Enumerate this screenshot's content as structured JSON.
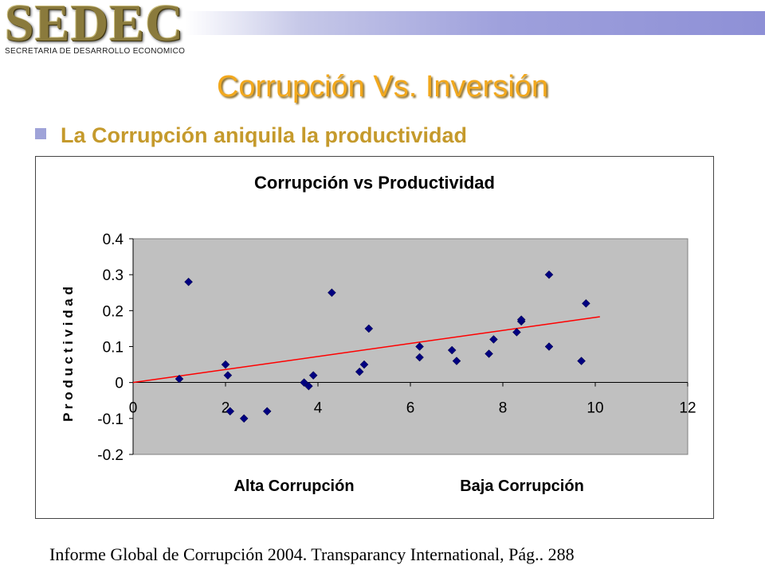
{
  "header": {
    "logo_text": "SEDEC",
    "logo_subtitle": "SECRETARIA DE DESARROLLO ECONOMICO",
    "bar_color": "#8e90d6"
  },
  "slide": {
    "title": "Corrupción Vs. Inversión",
    "bullet": "La Corrupción aniquila la productividad",
    "source": "Informe Global de Corrupción 2004. Transparancy International, Pág.. 288"
  },
  "chart_data": {
    "type": "scatter",
    "title": "Corrupción vs Productividad",
    "xlabel_left": "Alta Corrupción",
    "xlabel_right": "Baja Corrupción",
    "ylabel": "P r o d u c t i v i d a d",
    "xlim": [
      0,
      12
    ],
    "ylim": [
      -0.2,
      0.4
    ],
    "x_ticks": [
      "0",
      "2",
      "4",
      "6",
      "8",
      "10",
      "12"
    ],
    "y_ticks": [
      "0.4",
      "0.3",
      "0.2",
      "0.1",
      "0",
      "-0.1",
      "-0.2"
    ],
    "grid": false,
    "plot_background": "#c0c0c0",
    "marker_color": "#000080",
    "trendline_color": "#ff0000",
    "trendline": {
      "x1": 0,
      "y1": 0.0,
      "x2": 10.1,
      "y2": 0.183
    },
    "series": [
      {
        "points": [
          [
            1.0,
            0.01
          ],
          [
            1.2,
            0.28
          ],
          [
            2.0,
            0.05
          ],
          [
            2.05,
            0.02
          ],
          [
            2.1,
            -0.08
          ],
          [
            2.4,
            -0.1
          ],
          [
            2.9,
            -0.08
          ],
          [
            3.7,
            0.0
          ],
          [
            3.8,
            -0.01
          ],
          [
            3.9,
            0.02
          ],
          [
            4.3,
            0.25
          ],
          [
            4.9,
            0.03
          ],
          [
            5.0,
            0.05
          ],
          [
            5.1,
            0.15
          ],
          [
            6.2,
            0.1
          ],
          [
            6.2,
            0.07
          ],
          [
            6.9,
            0.09
          ],
          [
            7.0,
            0.06
          ],
          [
            7.7,
            0.08
          ],
          [
            7.8,
            0.12
          ],
          [
            8.3,
            0.14
          ],
          [
            8.4,
            0.17
          ],
          [
            8.4,
            0.175
          ],
          [
            9.0,
            0.3
          ],
          [
            9.0,
            0.1
          ],
          [
            9.7,
            0.06
          ],
          [
            9.8,
            0.22
          ]
        ]
      }
    ]
  }
}
